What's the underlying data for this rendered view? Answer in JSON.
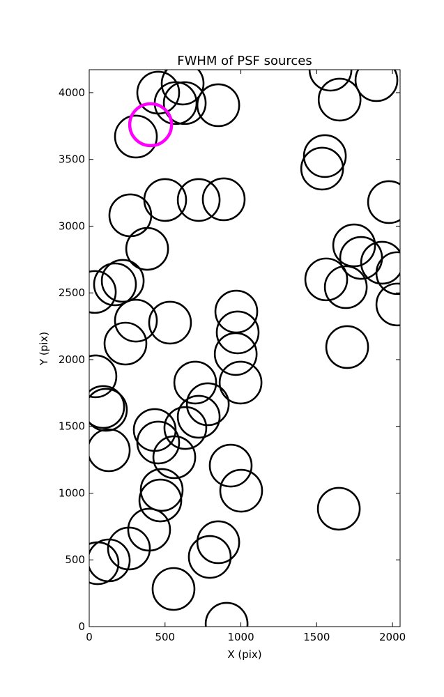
{
  "chart_data": {
    "type": "scatter",
    "title": "FWHM of PSF sources",
    "x_label": "X (pix)",
    "y_label": "Y (pix)",
    "xlim": [
      0,
      2050
    ],
    "ylim": [
      0,
      4172
    ],
    "xticks": [
      0,
      500,
      1000,
      1500,
      2000
    ],
    "yticks": [
      0,
      500,
      1000,
      1500,
      2000,
      2500,
      3000,
      3500,
      4000
    ],
    "series": [
      {
        "color": "#000000",
        "x": [
          455,
          570,
          616,
          630,
          851,
          308,
          1591,
          1651,
          1894,
          1554,
          1536,
          1977,
          501,
          722,
          887,
          271,
          382,
          1747,
          1793,
          1931,
          2032,
          1563,
          1692,
          2032,
          37,
          170,
          221,
          970,
          308,
          533,
          979,
          239,
          1701,
          966,
          41,
          699,
          998,
          782,
          92,
          110,
          722,
          634,
          432,
          455,
          561,
          129,
          933,
          478,
          1002,
          469,
          1646,
          395,
          851,
          262,
          795,
          129,
          55,
          556,
          906
        ],
        "values": [
          4000,
          3922,
          4068,
          3922,
          3906,
          3671,
          4172,
          3948,
          4094,
          3525,
          3431,
          3180,
          3196,
          3196,
          3201,
          3081,
          2830,
          2856,
          2762,
          2726,
          2648,
          2601,
          2543,
          2413,
          2507,
          2564,
          2590,
          2360,
          2292,
          2277,
          2204,
          2120,
          2094,
          2042,
          1875,
          1828,
          1828,
          1666,
          1645,
          1624,
          1572,
          1488,
          1473,
          1379,
          1269,
          1321,
          1206,
          1024,
          1018,
          945,
          883,
          726,
          632,
          585,
          522,
          496,
          475,
          282,
          21
        ]
      },
      {
        "color": "#ff00ff",
        "x": [
          405
        ],
        "values": [
          3760
        ]
      }
    ]
  }
}
